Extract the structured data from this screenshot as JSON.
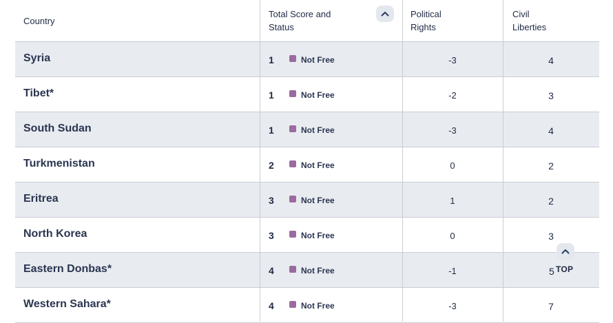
{
  "header": {
    "country": "Country",
    "total_line1": "Total Score and",
    "total_line2": "Status",
    "political_line1": "Political",
    "political_line2": "Rights",
    "civil_line1": "Civil",
    "civil_line2": "Liberties"
  },
  "status_color": "#9b6aa0",
  "rows": [
    {
      "country": "Syria",
      "score": "1",
      "status": "Not Free",
      "political": "-3",
      "civil": "4"
    },
    {
      "country": "Tibet*",
      "score": "1",
      "status": "Not Free",
      "political": "-2",
      "civil": "3"
    },
    {
      "country": "South Sudan",
      "score": "1",
      "status": "Not Free",
      "political": "-3",
      "civil": "4"
    },
    {
      "country": "Turkmenistan",
      "score": "2",
      "status": "Not Free",
      "political": "0",
      "civil": "2"
    },
    {
      "country": "Eritrea",
      "score": "3",
      "status": "Not Free",
      "political": "1",
      "civil": "2"
    },
    {
      "country": "North Korea",
      "score": "3",
      "status": "Not Free",
      "political": "0",
      "civil": "3"
    },
    {
      "country": "Eastern Donbas*",
      "score": "4",
      "status": "Not Free",
      "political": "-1",
      "civil": "5"
    },
    {
      "country": "Western Sahara*",
      "score": "4",
      "status": "Not Free",
      "political": "-3",
      "civil": "7"
    }
  ],
  "top_button": {
    "label": "TOP"
  }
}
